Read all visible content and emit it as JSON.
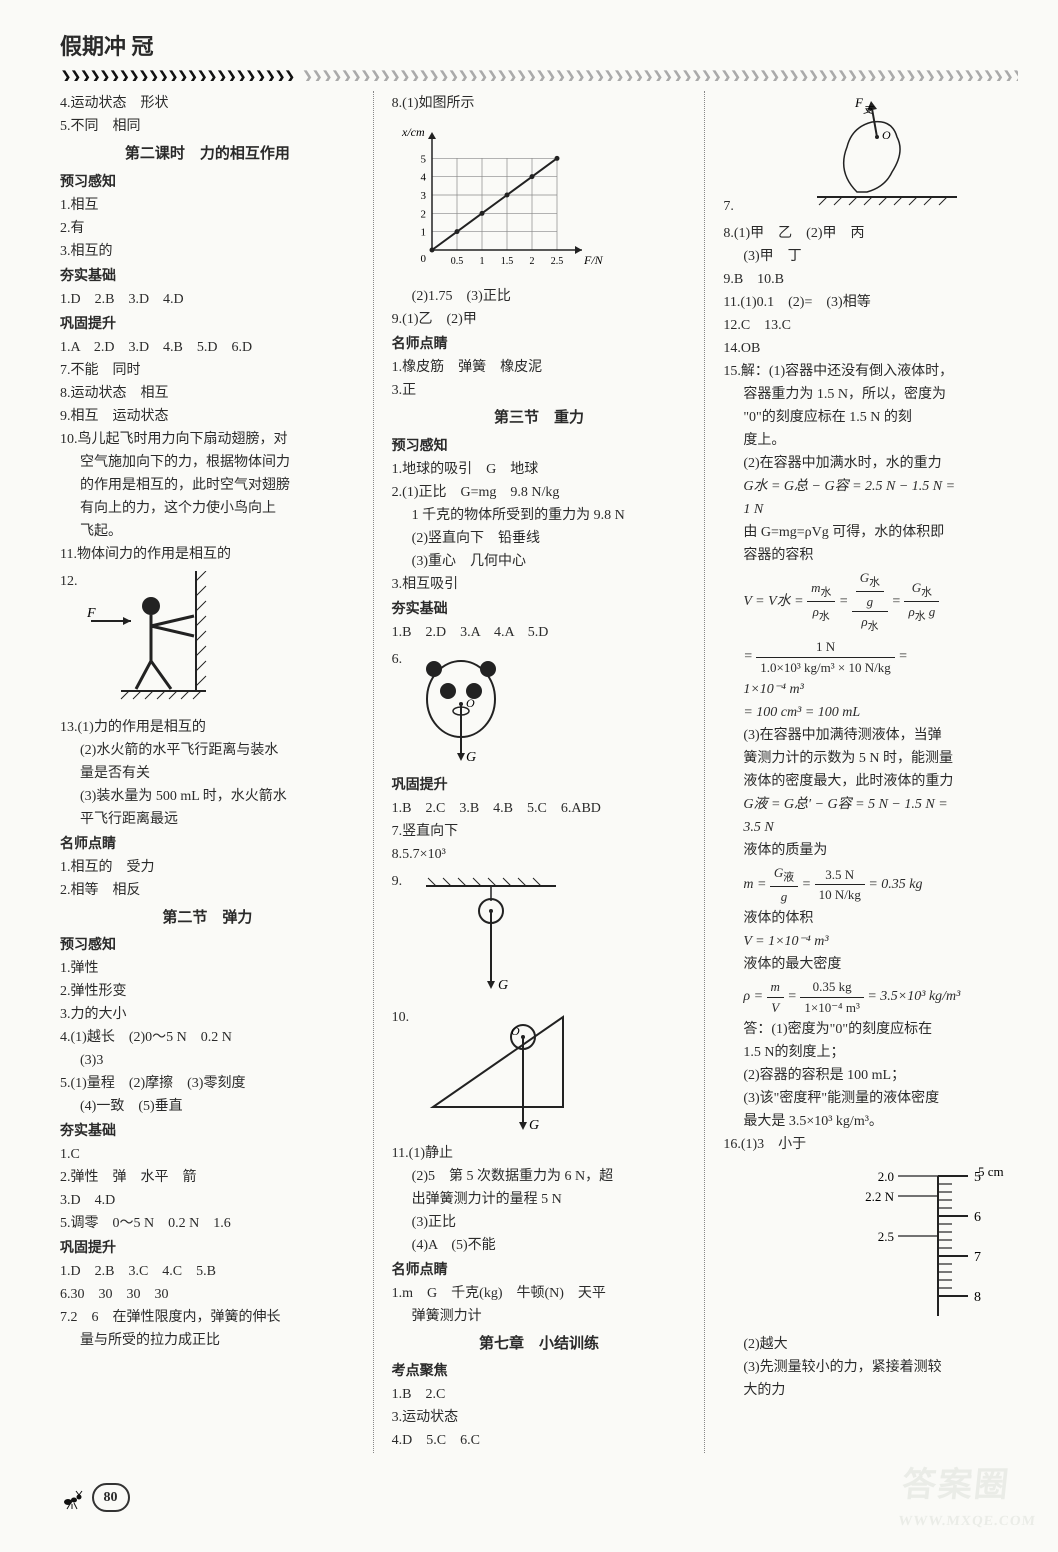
{
  "header": "假期冲 冠",
  "page_number": "80",
  "watermark": {
    "main": "答案圈",
    "sub": "WWW.MXQE.COM"
  },
  "col1": {
    "l4": "4.运动状态　形状",
    "l5": "5.不同　相同",
    "sec2_title": "第二课时　力的相互作用",
    "preview": "预习感知",
    "p1": "1.相互",
    "p2": "2.有",
    "p3": "3.相互的",
    "basic": "夯实基础",
    "b1": "1.D　2.B　3.D　4.D",
    "consol": "巩固提升",
    "c1": "1.A　2.D　3.D　4.B　5.D　6.D",
    "c7": "7.不能　同时",
    "c8": "8.运动状态　相互",
    "c9": "9.相互　运动状态",
    "c10a": "10.鸟儿起飞时用力向下扇动翅膀，对",
    "c10b": "空气施加向下的力，根据物体间力",
    "c10c": "的作用是相互的，此时空气对翅膀",
    "c10d": "有向上的力，这个力使小鸟向上",
    "c10e": "飞起。",
    "c11": "11.物体间力的作用是相互的",
    "c12": "12.",
    "c13a": "13.(1)力的作用是相互的",
    "c13b": "(2)水火箭的水平飞行距离与装水",
    "c13c": "量是否有关",
    "c13d": "(3)装水量为 500 mL 时，水火箭水",
    "c13e": "平飞行距离最远",
    "teacher": "名师点睛",
    "t1": "1.相互的　受力",
    "t2": "2.相等　相反",
    "sec_elastic": "第二节　弹力",
    "ep": "预习感知",
    "e1": "1.弹性",
    "e2": "2.弹性形变",
    "e3": "3.力的大小",
    "e4": "4.(1)越长　(2)0～5 N　0.2 N",
    "e4b": "(3)3",
    "e5": "5.(1)量程　(2)摩擦　(3)零刻度",
    "e5b": "(4)一致　(5)垂直",
    "ebasic": "夯实基础",
    "eb1": "1.C",
    "eb2": "2.弹性　弹　水平　箭",
    "eb3": "3.D　4.D",
    "eb5": "5.调零　0～5 N　0.2 N　1.6",
    "econsol": "巩固提升",
    "ec1": "1.D　2.B　3.C　4.C　5.B",
    "ec6": "6.30　30　30　30",
    "ec7a": "7.2　6　在弹性限度内，弹簧的伸长",
    "ec7b": "量与所受的拉力成正比"
  },
  "col2": {
    "l8a": "8.(1)如图所示",
    "graph": {
      "xlabel": "F/N",
      "ylabel": "x/cm",
      "xmax": 3.0,
      "ymax": 6,
      "xticks": [
        "0",
        "0.5",
        "1",
        "1.5",
        "2",
        "2.5"
      ],
      "yticks": [
        "1",
        "2",
        "3",
        "4",
        "5"
      ],
      "points": [
        [
          0,
          0
        ],
        [
          0.5,
          1
        ],
        [
          1,
          2
        ],
        [
          1.5,
          3
        ],
        [
          2,
          4
        ],
        [
          2.5,
          5
        ]
      ],
      "grid_color": "#888",
      "line_color": "#222"
    },
    "l8b": "(2)1.75　(3)正比",
    "l9": "9.(1)乙　(2)甲",
    "teacher": "名师点睛",
    "t1": "1.橡皮筋　弹簧　橡皮泥",
    "t3": "3.正",
    "sec3": "第三节　重力",
    "preview": "预习感知",
    "p1": "1.地球的吸引　G　地球",
    "p2a": "2.(1)正比　G=mg　9.8 N/kg",
    "p2b": "1 千克的物体所受到的重力为 9.8 N",
    "p2c": "(2)竖直向下　铅垂线",
    "p2d": "(3)重心　几何中心",
    "p3": "3.相互吸引",
    "basic": "夯实基础",
    "b1": "1.B　2.D　3.A　4.A　5.D",
    "b6": "6.",
    "consol": "巩固提升",
    "c1": "1.B　2.C　3.B　4.B　5.C　6.ABD",
    "c7": "7.竖直向下",
    "c8": "8.5.7×10³",
    "c9": "9.",
    "c10": "10.",
    "c11a": "11.(1)静止",
    "c11b": "(2)5　第 5 次数据重力为 6 N，超",
    "c11c": "出弹簧测力计的量程 5 N",
    "c11d": "(3)正比",
    "c11e": "(4)A　(5)不能",
    "teacher2": "名师点睛",
    "tt1": "1.m　G　千克(kg)　牛顿(N)　天平",
    "tt1b": "弹簧测力计",
    "sec7": "第七章　小结训练",
    "kd": "考点聚焦",
    "k1": "1.B　2.C",
    "k3": "3.运动状态",
    "k4": "4.D　5.C　6.C"
  },
  "col3": {
    "l7": "7.",
    "l8": "8.(1)甲　乙　(2)甲　丙",
    "l8b": "(3)甲　丁",
    "l9": "9.B　10.B",
    "l11": "11.(1)0.1　(2)=　(3)相等",
    "l12": "12.C　13.C",
    "l14": "14.OB",
    "l15a": "15.解：(1)容器中还没有倒入液体时，",
    "l15b": "容器重力为 1.5 N，所以，密度为",
    "l15c": "\"0\"的刻度应标在 1.5 N 的刻",
    "l15d": "度上。",
    "l15e": "(2)在容器中加满水时，水的重力",
    "l15f": "G水 = G总 − G容 = 2.5 N − 1.5 N =",
    "l15g": "1 N",
    "l15h": "由 G=mg=ρVg 可得，水的体积即",
    "l15i": "容器的容积",
    "l15eq1_lhs": "V = V水 = ",
    "l15eq2_eq": " = ",
    "l15eq2_res": " = ",
    "l15j": "1×10⁻⁴ m³",
    "l15k": "= 100 cm³ = 100 mL",
    "l15l": "(3)在容器中加满待测液体，当弹",
    "l15m": "簧测力计的示数为 5 N 时，能测量",
    "l15n": "液体的密度最大，此时液体的重力",
    "l15o": "G液 = G总′ − G容 = 5 N − 1.5 N =",
    "l15p": "3.5 N",
    "l15q": "液体的质量为",
    "l15r_lhs": "m = ",
    "l15r_res": " = 0.35 kg",
    "l15s": "液体的体积",
    "l15t": "V = 1×10⁻⁴ m³",
    "l15u": "液体的最大密度",
    "l15v_lhs": "ρ = ",
    "l15v_res": " = 3.5×10³ kg/m³",
    "l15w": "答：(1)密度为\"0\"的刻度应标在",
    "l15x": "1.5 N的刻度上；",
    "l15y": "(2)容器的容积是 100 mL；",
    "l15z": "(3)该\"密度秤\"能测量的液体密度",
    "l15z2": "最大是 3.5×10³ kg/m³。",
    "l16a": "16.(1)3　小于",
    "l16b": "(2)越大",
    "l16c": "(3)先测量较小的力，紧接着测较",
    "l16d": "大的力",
    "scale": {
      "ticks": [
        "5",
        "6",
        "7",
        "8"
      ],
      "cm_label": "5 cm",
      "labels": [
        "2.0",
        "2.2 N",
        "2.5"
      ]
    }
  }
}
